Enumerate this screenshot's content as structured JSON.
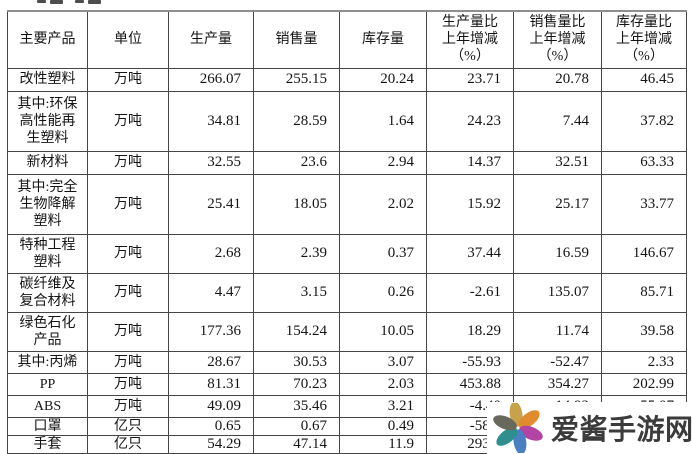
{
  "table": {
    "headers": [
      "主要产品",
      "单位",
      "生产量",
      "销售量",
      "库存量",
      "生产量比\n上年增减\n（%）",
      "销售量比\n上年增减\n（%）",
      "库存量比\n上年增减\n（%）"
    ],
    "rows": [
      [
        "改性塑料",
        "万吨",
        "266.07",
        "255.15",
        "20.24",
        "23.71",
        "20.78",
        "46.45"
      ],
      [
        "其中:环保\n高性能再\n生塑料",
        "万吨",
        "34.81",
        "28.59",
        "1.64",
        "24.23",
        "7.44",
        "37.82"
      ],
      [
        "新材料",
        "万吨",
        "32.55",
        "23.6",
        "2.94",
        "14.37",
        "32.51",
        "63.33"
      ],
      [
        "其中:完全\n生物降解\n塑料",
        "万吨",
        "25.41",
        "18.05",
        "2.02",
        "15.92",
        "25.17",
        "33.77"
      ],
      [
        "特种工程\n塑料",
        "万吨",
        "2.68",
        "2.39",
        "0.37",
        "37.44",
        "16.59",
        "146.67"
      ],
      [
        "碳纤维及\n复合材料",
        "万吨",
        "4.47",
        "3.15",
        "0.26",
        "-2.61",
        "135.07",
        "85.71"
      ],
      [
        "绿色石化\n产品",
        "万吨",
        "177.36",
        "154.24",
        "10.05",
        "18.29",
        "11.74",
        "39.58"
      ],
      [
        "其中:丙烯",
        "万吨",
        "28.67",
        "30.53",
        "3.07",
        "-55.93",
        "-52.47",
        "2.33"
      ],
      [
        "PP",
        "万吨",
        "81.31",
        "70.23",
        "2.03",
        "453.88",
        "354.27",
        "202.99"
      ],
      [
        "ABS",
        "万吨",
        "49.09",
        "35.46",
        "3.21",
        "-4.40",
        "-14.92",
        "55.07"
      ],
      [
        "口罩",
        "亿只",
        "0.65",
        "0.67",
        "0.49",
        "-58.9",
        "",
        ""
      ],
      [
        "手套",
        "亿只",
        "54.29",
        "47.14",
        "11.9",
        "293.9",
        "",
        ""
      ]
    ],
    "cell_names": [
      "product-name-cell",
      "unit-cell",
      "production-cell",
      "sales-cell",
      "inventory-cell",
      "production-change-cell",
      "sales-change-cell",
      "inventory-change-cell"
    ]
  },
  "watermark": {
    "text": "爱酱手游网",
    "text_color": "#3b3b3b",
    "petal_colors": [
      "#c8a24a",
      "#df8b2e",
      "#b244a4",
      "#4a7fc1",
      "#2f8e8e",
      "#68685c"
    ]
  }
}
